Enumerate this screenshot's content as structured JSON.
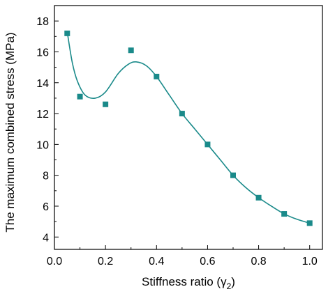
{
  "chart_data": {
    "type": "scatter",
    "title": "",
    "xlabel": "Stiffness ratio (γ",
    "xlabel_sub": "2",
    "xlabel_close": ")",
    "ylabel": "The maximum combined stress (MPa)",
    "xlim": [
      0.0,
      1.05
    ],
    "ylim": [
      3.2,
      19.0
    ],
    "x_ticks": [
      "0.0",
      "0.2",
      "0.4",
      "0.6",
      "0.8",
      "1.0"
    ],
    "y_ticks": [
      "4",
      "6",
      "8",
      "10",
      "12",
      "14",
      "16",
      "18"
    ],
    "grid": false,
    "legend": "none",
    "series": [
      {
        "marker": "square",
        "color": "#1a8a8a",
        "points": [
          {
            "x": 0.05,
            "y": 17.2
          },
          {
            "x": 0.1,
            "y": 13.1
          },
          {
            "x": 0.2,
            "y": 12.6
          },
          {
            "x": 0.3,
            "y": 16.1
          },
          {
            "x": 0.4,
            "y": 14.4
          },
          {
            "x": 0.5,
            "y": 12.0
          },
          {
            "x": 0.6,
            "y": 10.0
          },
          {
            "x": 0.7,
            "y": 8.0
          },
          {
            "x": 0.8,
            "y": 6.55
          },
          {
            "x": 0.9,
            "y": 5.5
          },
          {
            "x": 1.0,
            "y": 4.9
          }
        ]
      }
    ],
    "fit_curve": {
      "color": "#1a8a8a",
      "points": [
        {
          "x": 0.05,
          "y": 17.3
        },
        {
          "x": 0.07,
          "y": 15.3
        },
        {
          "x": 0.09,
          "y": 14.1
        },
        {
          "x": 0.12,
          "y": 13.2
        },
        {
          "x": 0.16,
          "y": 13.0
        },
        {
          "x": 0.2,
          "y": 13.4
        },
        {
          "x": 0.25,
          "y": 14.6
        },
        {
          "x": 0.29,
          "y": 15.2
        },
        {
          "x": 0.32,
          "y": 15.35
        },
        {
          "x": 0.36,
          "y": 15.1
        },
        {
          "x": 0.4,
          "y": 14.4
        },
        {
          "x": 0.45,
          "y": 13.2
        },
        {
          "x": 0.5,
          "y": 12.0
        },
        {
          "x": 0.55,
          "y": 11.0
        },
        {
          "x": 0.6,
          "y": 10.0
        },
        {
          "x": 0.65,
          "y": 9.0
        },
        {
          "x": 0.7,
          "y": 8.0
        },
        {
          "x": 0.75,
          "y": 7.2
        },
        {
          "x": 0.8,
          "y": 6.55
        },
        {
          "x": 0.85,
          "y": 6.0
        },
        {
          "x": 0.9,
          "y": 5.5
        },
        {
          "x": 0.95,
          "y": 5.15
        },
        {
          "x": 1.0,
          "y": 4.9
        }
      ]
    }
  }
}
